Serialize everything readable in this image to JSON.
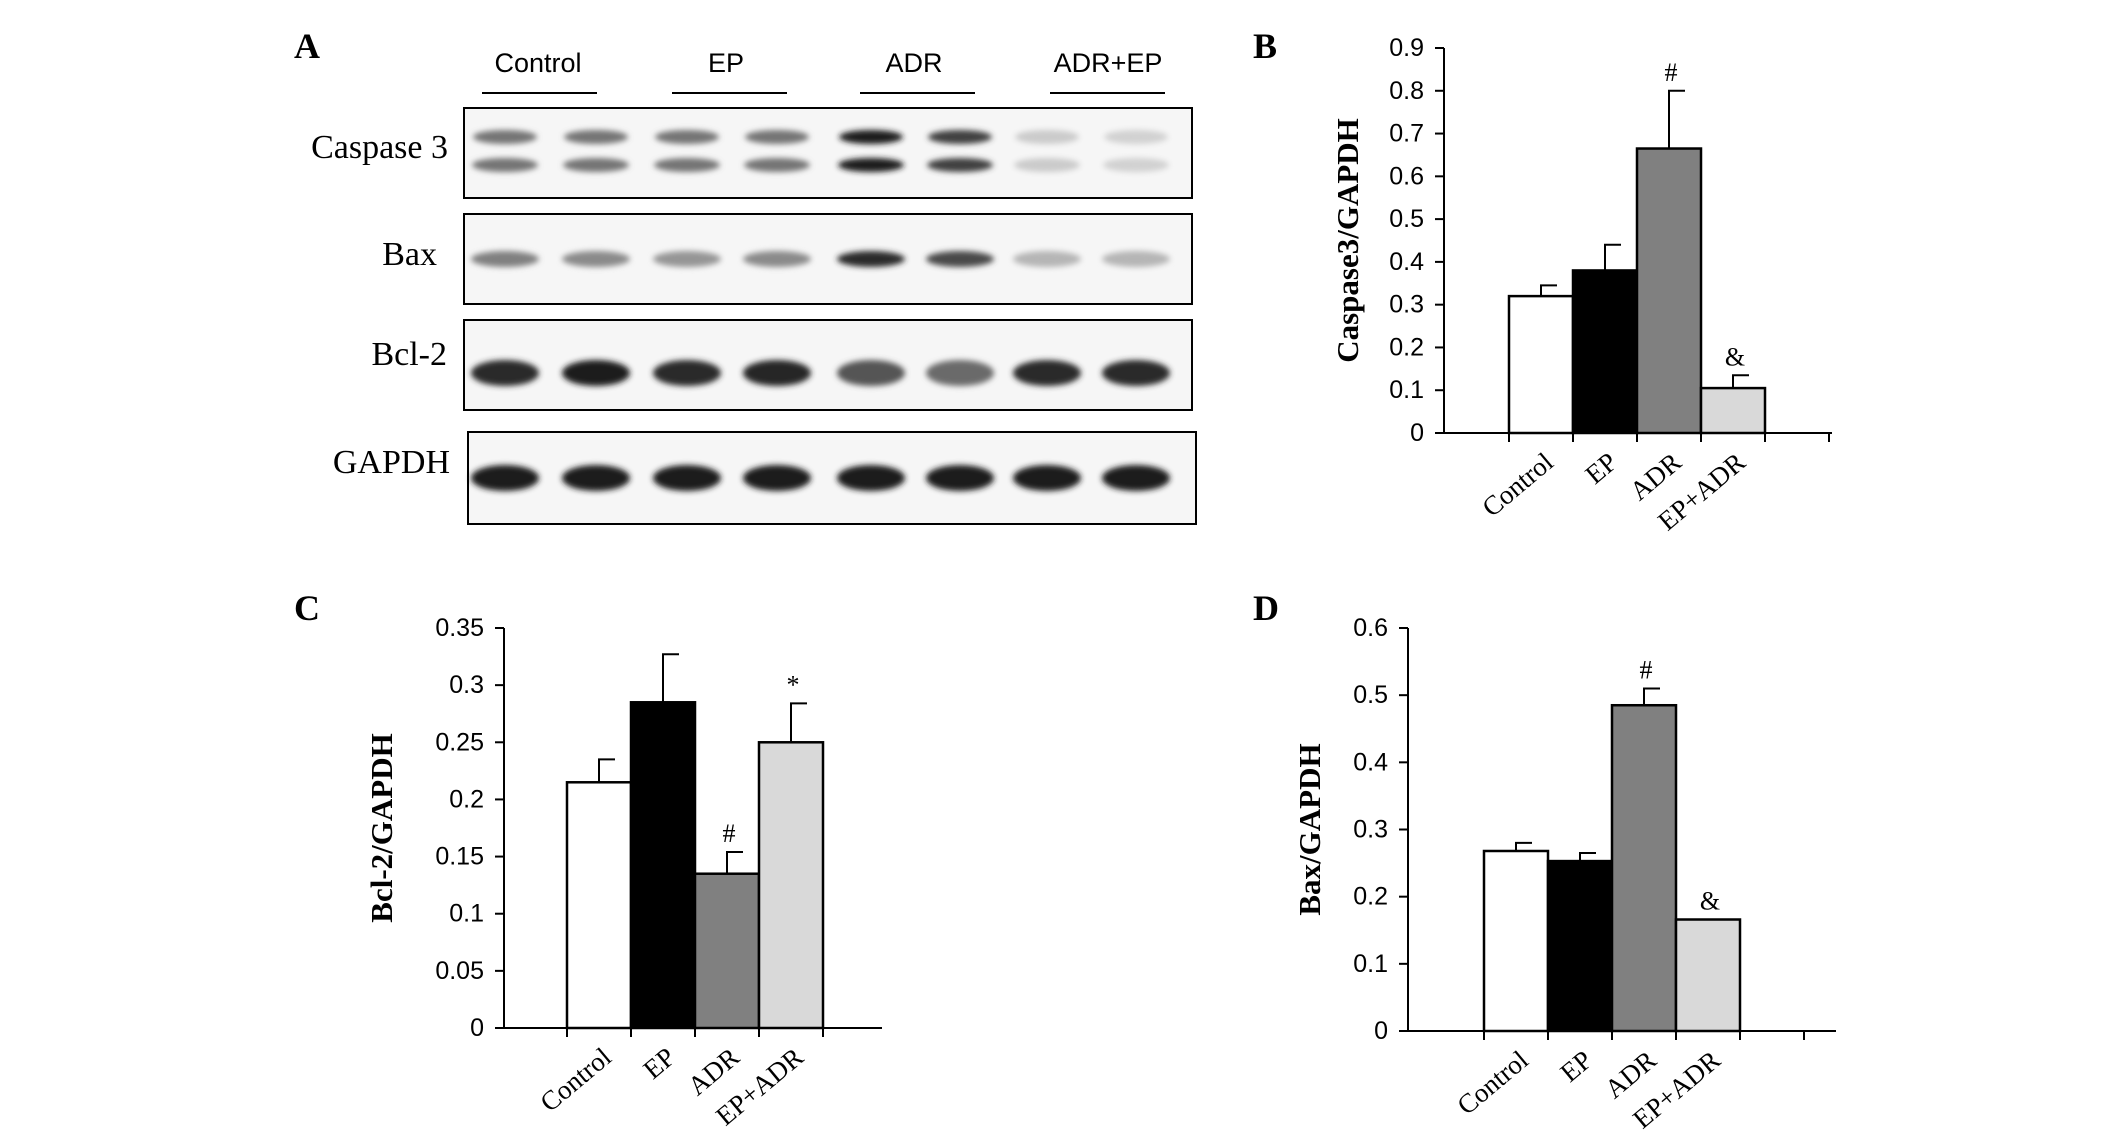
{
  "panels": {
    "a": "A",
    "b": "B",
    "c": "C",
    "d": "D"
  },
  "blot": {
    "groups": [
      "Control",
      "EP",
      "ADR",
      "ADR+EP"
    ],
    "rows": [
      {
        "name": "Caspase 3",
        "intensities": [
          0.55,
          0.55,
          0.55,
          0.55,
          0.95,
          0.8,
          0.15,
          0.12
        ],
        "double": true
      },
      {
        "name": "Bax",
        "intensities": [
          0.5,
          0.45,
          0.4,
          0.45,
          0.9,
          0.75,
          0.25,
          0.25
        ],
        "double": false
      },
      {
        "name": "Bcl-2",
        "intensities": [
          0.9,
          0.95,
          0.9,
          0.92,
          0.7,
          0.6,
          0.9,
          0.9
        ],
        "double": false
      },
      {
        "name": "GAPDH",
        "intensities": [
          0.95,
          0.95,
          0.95,
          0.95,
          0.95,
          0.95,
          0.95,
          0.95
        ],
        "double": false
      }
    ]
  },
  "chart_data": [
    {
      "panel": "B",
      "type": "bar",
      "categories": [
        "Control",
        "EP",
        "ADR",
        "EP+ADR"
      ],
      "values": [
        0.32,
        0.38,
        0.665,
        0.105
      ],
      "errors": [
        0.025,
        0.06,
        0.135,
        0.03
      ],
      "annotations": [
        "",
        "",
        "#",
        "&"
      ],
      "ylabel": "Caspase3/GAPDH",
      "ylim": [
        0,
        0.9
      ],
      "yticks": [
        "0",
        "0.1",
        "0.2",
        "0.3",
        "0.4",
        "0.5",
        "0.6",
        "0.7",
        "0.8",
        "0.9"
      ],
      "colors": [
        "#ffffff",
        "#000000",
        "#808080",
        "#d9d9d9"
      ]
    },
    {
      "panel": "C",
      "type": "bar",
      "categories": [
        "Control",
        "EP",
        "ADR",
        "EP+ADR"
      ],
      "values": [
        0.215,
        0.285,
        0.135,
        0.25
      ],
      "errors": [
        0.02,
        0.042,
        0.019,
        0.034
      ],
      "annotations": [
        "",
        "",
        "#",
        "*"
      ],
      "ylabel": "Bcl-2/GAPDH",
      "ylim": [
        0,
        0.35
      ],
      "yticks": [
        "0",
        "0.05",
        "0.1",
        "0.15",
        "0.2",
        "0.25",
        "0.3",
        "0.35"
      ],
      "colors": [
        "#ffffff",
        "#000000",
        "#808080",
        "#d9d9d9"
      ]
    },
    {
      "panel": "D",
      "type": "bar",
      "categories": [
        "Control",
        "EP",
        "ADR",
        "EP+ADR"
      ],
      "values": [
        0.268,
        0.253,
        0.485,
        0.166
      ],
      "errors": [
        0.012,
        0.012,
        0.025,
        0.0
      ],
      "annotations": [
        "",
        "",
        "#",
        "&"
      ],
      "ylabel": "Bax/GAPDH",
      "ylim": [
        0,
        0.6
      ],
      "yticks": [
        "0",
        "0.1",
        "0.2",
        "0.3",
        "0.4",
        "0.5",
        "0.6"
      ],
      "colors": [
        "#ffffff",
        "#000000",
        "#808080",
        "#d9d9d9"
      ]
    }
  ]
}
